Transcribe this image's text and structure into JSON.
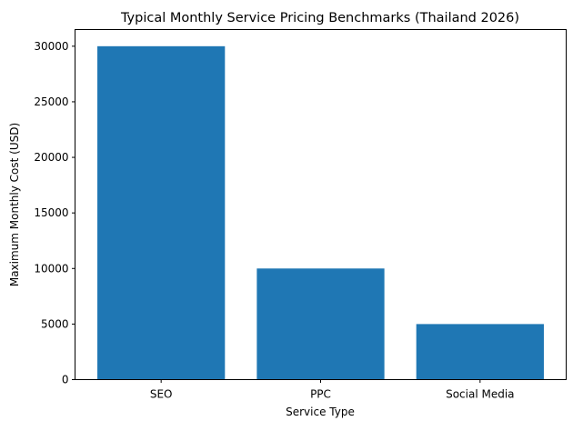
{
  "chart_data": {
    "type": "bar",
    "title": "Typical Monthly Service Pricing Benchmarks (Thailand 2026)",
    "xlabel": "Service Type",
    "ylabel": "Maximum Monthly Cost (USD)",
    "categories": [
      "SEO",
      "PPC",
      "Social Media"
    ],
    "values": [
      30000,
      10000,
      5000
    ],
    "ylim": [
      0,
      31500
    ],
    "yticks": [
      0,
      5000,
      10000,
      15000,
      20000,
      25000,
      30000
    ],
    "grid": false,
    "bar_color": "#1f77b4"
  }
}
